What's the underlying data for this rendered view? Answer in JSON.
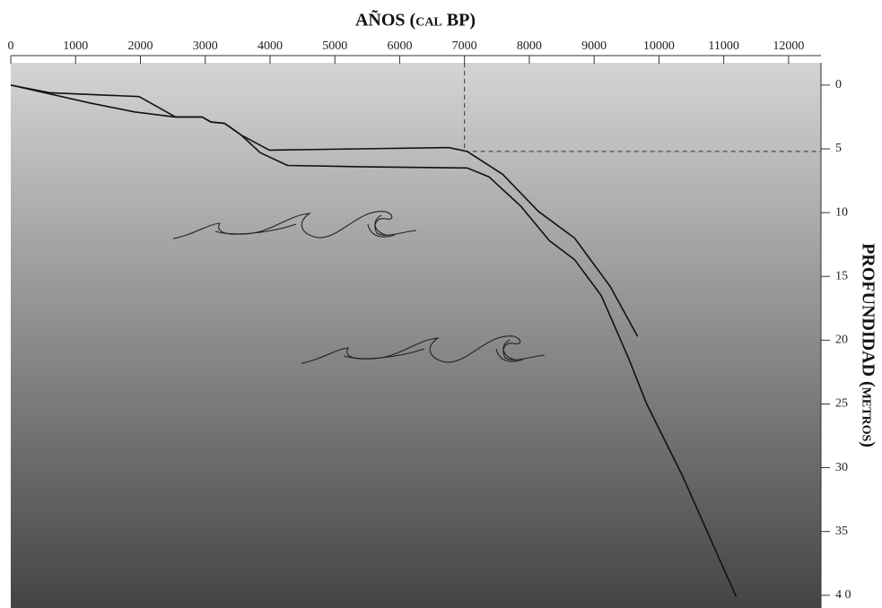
{
  "chart_data": {
    "type": "line",
    "title": "AÑOS (cal BP)",
    "y_label": "PROFUNDIDAD (metros)",
    "xlim": [
      0,
      12500
    ],
    "xticks": [
      0,
      1000,
      2000,
      3000,
      4000,
      5000,
      6000,
      7000,
      8000,
      9000,
      10000,
      11000,
      12000
    ],
    "ylim": [
      -1.75,
      41
    ],
    "yticks": [
      0,
      5,
      10,
      15,
      20,
      25,
      30,
      35,
      {
        "value": 40,
        "label": "4 0"
      }
    ],
    "y_inverted": true,
    "color": "#111111",
    "series": [
      {
        "x": [
          0,
          600,
          1980,
          2190,
          2540,
          2950,
          3090,
          3300,
          3550,
          3990,
          5370,
          6760,
          7040,
          7590,
          8140,
          8700,
          9250,
          9670
        ],
        "values": [
          0,
          0.6,
          0.9,
          1.5,
          2.5,
          2.5,
          2.9,
          3.0,
          3.9,
          5.1,
          5.0,
          4.9,
          5.2,
          7.0,
          9.9,
          12.0,
          15.8,
          19.7
        ]
      },
      {
        "x": [
          0,
          1220,
          1910,
          2530,
          2950,
          3090,
          3300,
          3550,
          3850,
          4270,
          5370,
          7040,
          7380,
          7870,
          8310,
          8700,
          9110,
          9530,
          9810,
          10360,
          10910,
          11190
        ],
        "values": [
          0,
          1.4,
          2.1,
          2.5,
          2.5,
          2.9,
          3.0,
          3.9,
          5.3,
          6.3,
          6.4,
          6.5,
          7.2,
          9.5,
          12.2,
          13.7,
          16.5,
          21.4,
          25.0,
          30.6,
          36.9,
          40.1
        ]
      }
    ],
    "reference": {
      "x": 7000,
      "y": 5.2
    }
  }
}
